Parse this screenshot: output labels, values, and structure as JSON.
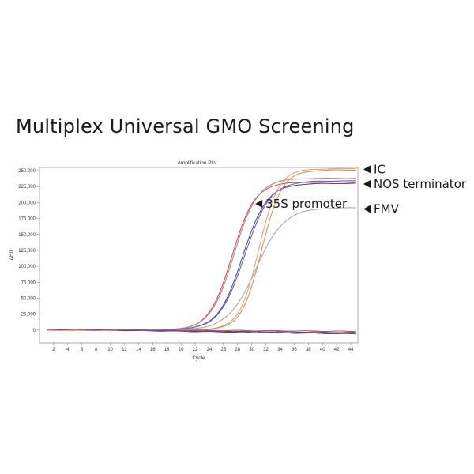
{
  "page": {
    "title": "Multiplex Universal GMO Screening"
  },
  "chart_data": {
    "type": "line",
    "title": "Amplification Plot",
    "xlabel": "Cycle",
    "ylabel": "ΔRn",
    "xlim": [
      0,
      45
    ],
    "ylim": [
      -20000,
      255000
    ],
    "xticks": [
      2,
      4,
      6,
      8,
      10,
      12,
      14,
      16,
      18,
      20,
      22,
      24,
      26,
      28,
      30,
      32,
      34,
      36,
      38,
      40,
      42,
      44
    ],
    "yticks": [
      0,
      25000,
      50000,
      75000,
      100000,
      125000,
      150000,
      175000,
      200000,
      225000,
      250000
    ],
    "ytick_labels": [
      "0",
      "25,000",
      "50,000",
      "75,000",
      "100,000",
      "125,000",
      "150,000",
      "175,000",
      "200,000",
      "225,000",
      "250,000"
    ],
    "grid": true,
    "annotations": [
      {
        "text": "IC",
        "y": 252000
      },
      {
        "text": "NOS terminator",
        "y": 230000
      },
      {
        "text": "35S promoter",
        "y": 198000,
        "x": 30.5
      },
      {
        "text": "FMV",
        "y": 190000
      }
    ],
    "series": [
      {
        "color": "#b85a5e",
        "ct": 27.2,
        "k": 0.62,
        "plateau": 232000,
        "values_note": ""
      },
      {
        "color": "#c97a82",
        "ct": 27.5,
        "k": 0.6,
        "plateau": 238000
      },
      {
        "color": "#4a4aa0",
        "ct": 28.7,
        "k": 0.58,
        "plateau": 230000
      },
      {
        "color": "#6b62b8",
        "ct": 29.0,
        "k": 0.56,
        "plateau": 234000
      },
      {
        "color": "#aaaaaa",
        "ct": 30.6,
        "k": 0.5,
        "plateau": 192000
      },
      {
        "color": "#e8a56a",
        "ct": 31.0,
        "k": 0.72,
        "plateau": 253000
      },
      {
        "color": "#d4945a",
        "ct": 31.4,
        "k": 0.7,
        "plateau": 251000
      },
      {
        "color": "#7a3a5a",
        "ct": null,
        "flat": -4000
      },
      {
        "color": "#4a4aa0",
        "ct": null,
        "flat": -6000
      },
      {
        "color": "#b85a5e",
        "ct": null,
        "flat": -2000
      }
    ]
  }
}
